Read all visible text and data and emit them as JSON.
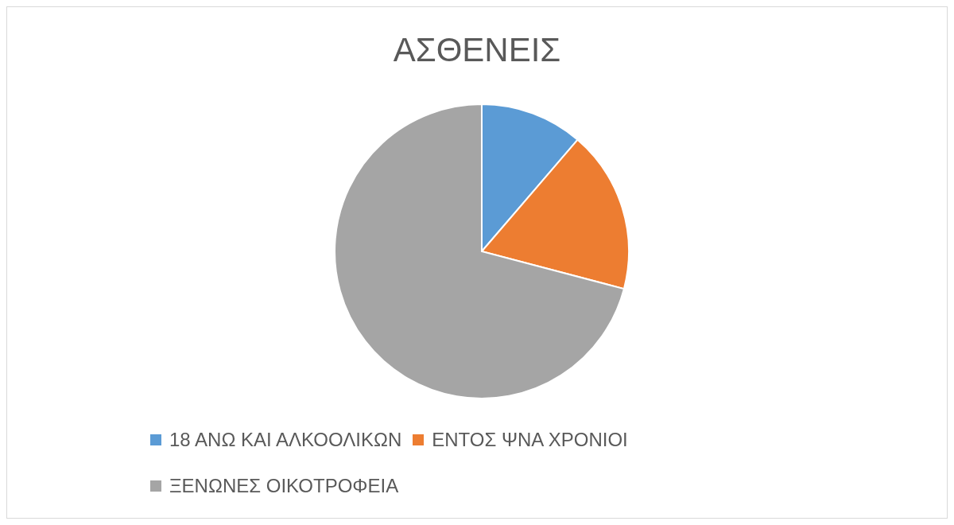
{
  "chart_data": {
    "type": "pie",
    "title": "ΑΣΘΕΝΕΙΣ",
    "categories": [
      "18 ΑΝΩ ΚΑΙ ΑΛΚΟΟΛΙΚΩΝ",
      "ΕΝΤΟΣ ΨΝΑ ΧΡΟΝΙΟΙ",
      "ΞΕΝΩΝΕΣ ΟΙΚΟΤΡΟΦΕΙΑ"
    ],
    "values": [
      11.3,
      17.8,
      70.9
    ],
    "colors": [
      "#5b9bd5",
      "#ed7d31",
      "#a5a5a5"
    ],
    "legend": "bottom"
  }
}
